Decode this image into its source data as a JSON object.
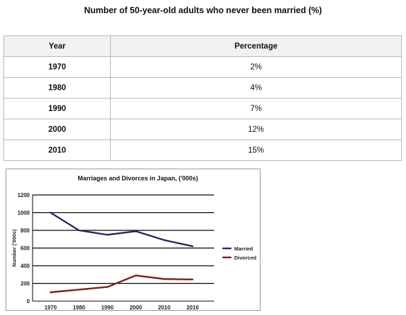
{
  "table": {
    "title": "Number of 50-year-old adults who never been married (%)",
    "headers": [
      "Year",
      "Percentage"
    ],
    "rows": [
      {
        "year": "1970",
        "percentage": "2%"
      },
      {
        "year": "1980",
        "percentage": "4%"
      },
      {
        "year": "1990",
        "percentage": "7%"
      },
      {
        "year": "2000",
        "percentage": "12%"
      },
      {
        "year": "2010",
        "percentage": "15%"
      }
    ]
  },
  "chart_data": [
    {
      "type": "table",
      "title": "Number of 50-year-old adults who never been married (%)",
      "columns": [
        "Year",
        "Percentage"
      ],
      "categories": [
        "1970",
        "1980",
        "1990",
        "2000",
        "2010"
      ],
      "values": [
        2,
        4,
        7,
        12,
        15
      ]
    },
    {
      "type": "line",
      "title": "Marriages and Divorces in Japan, ('000s)",
      "xlabel": "",
      "ylabel": "Number ('000s)",
      "categories": [
        "1970",
        "1980",
        "1990",
        "2000",
        "2010",
        "2016"
      ],
      "series": [
        {
          "name": "Married",
          "values": [
            1000,
            800,
            750,
            790,
            690,
            620
          ],
          "color": "#1f2a6b"
        },
        {
          "name": "Divorced",
          "values": [
            100,
            130,
            160,
            290,
            250,
            245
          ],
          "color": "#7a1f17"
        }
      ],
      "ylim": [
        0,
        1200
      ],
      "yticks": [
        "0",
        "200",
        "400",
        "600",
        "800",
        "1000",
        "1200"
      ],
      "grid": true,
      "legend_position": "right"
    }
  ]
}
